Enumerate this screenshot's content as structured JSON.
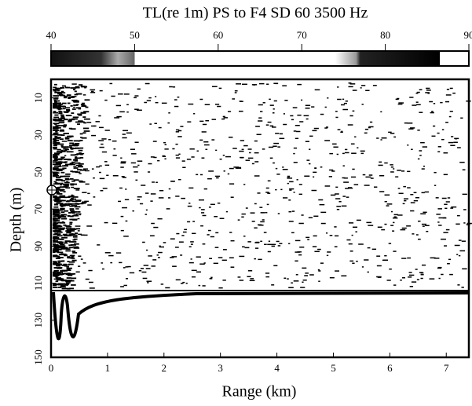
{
  "chart_data": {
    "type": "field",
    "title": "TL(re 1m)   PS to F4   SD  60   3500 Hz",
    "colorbar": {
      "lim": [
        40,
        90
      ],
      "ticks": [
        40,
        50,
        60,
        70,
        80,
        90
      ]
    },
    "xlabel": "Range (km)",
    "ylabel": "Depth (m)",
    "xlim": [
      0,
      7.4
    ],
    "xticks": [
      0,
      1,
      2,
      3,
      4,
      5,
      6,
      7
    ],
    "ylim": [
      0,
      150
    ],
    "yticks": [
      10,
      30,
      50,
      70,
      90,
      110,
      130,
      150
    ],
    "y_inverted": true
  }
}
